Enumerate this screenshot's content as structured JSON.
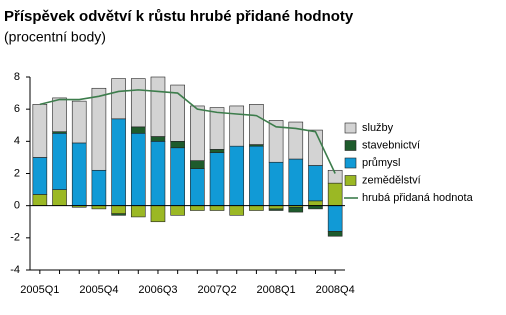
{
  "chart_data": {
    "type": "bar",
    "stacked": true,
    "title": "Příspěvek odvětví k růstu hrubé přidané hodnoty",
    "subtitle": "(procentní body)",
    "categories": [
      "2005Q1",
      null,
      null,
      "2005Q4",
      null,
      null,
      "2006Q3",
      null,
      null,
      "2007Q2",
      null,
      null,
      "2008Q1",
      null,
      null,
      "2008Q4"
    ],
    "series": [
      {
        "name": "služby",
        "color": "#d3d3d3",
        "values": [
          3.3,
          2.1,
          2.6,
          5.1,
          2.5,
          3.0,
          3.7,
          3.5,
          3.4,
          2.6,
          2.5,
          2.5,
          2.6,
          2.3,
          2.2,
          0.8
        ]
      },
      {
        "name": "stavebnictví",
        "color": "#1e5b2c",
        "values": [
          0.0,
          0.1,
          0.0,
          0.0,
          -0.1,
          0.4,
          0.3,
          0.4,
          0.5,
          0.2,
          0.0,
          0.1,
          -0.1,
          -0.3,
          -0.2,
          -0.3
        ]
      },
      {
        "name": "průmysl",
        "color": "#119ad6",
        "values": [
          2.3,
          3.5,
          3.9,
          2.2,
          5.4,
          4.5,
          4.0,
          3.6,
          2.3,
          3.3,
          3.7,
          3.7,
          2.7,
          2.9,
          2.2,
          -1.6
        ]
      },
      {
        "name": "zemědělství",
        "color": "#9bb824",
        "values": [
          0.7,
          1.0,
          -0.1,
          -0.2,
          -0.5,
          -0.7,
          -1.0,
          -0.6,
          -0.3,
          -0.3,
          -0.6,
          -0.3,
          -0.2,
          -0.1,
          0.3,
          1.4
        ]
      },
      {
        "name": "hrubá přidaná hodnota",
        "type": "line",
        "color": "#3d7d4c",
        "values": [
          6.3,
          6.6,
          6.6,
          6.8,
          7.1,
          7.2,
          7.1,
          7.0,
          6.0,
          5.8,
          5.7,
          5.6,
          4.9,
          4.8,
          4.6,
          2.0
        ]
      }
    ],
    "ylim": [
      -4,
      8
    ],
    "yticks": [
      -4,
      -2,
      0,
      2,
      4,
      6,
      8
    ],
    "grid": false,
    "legend": "right"
  }
}
